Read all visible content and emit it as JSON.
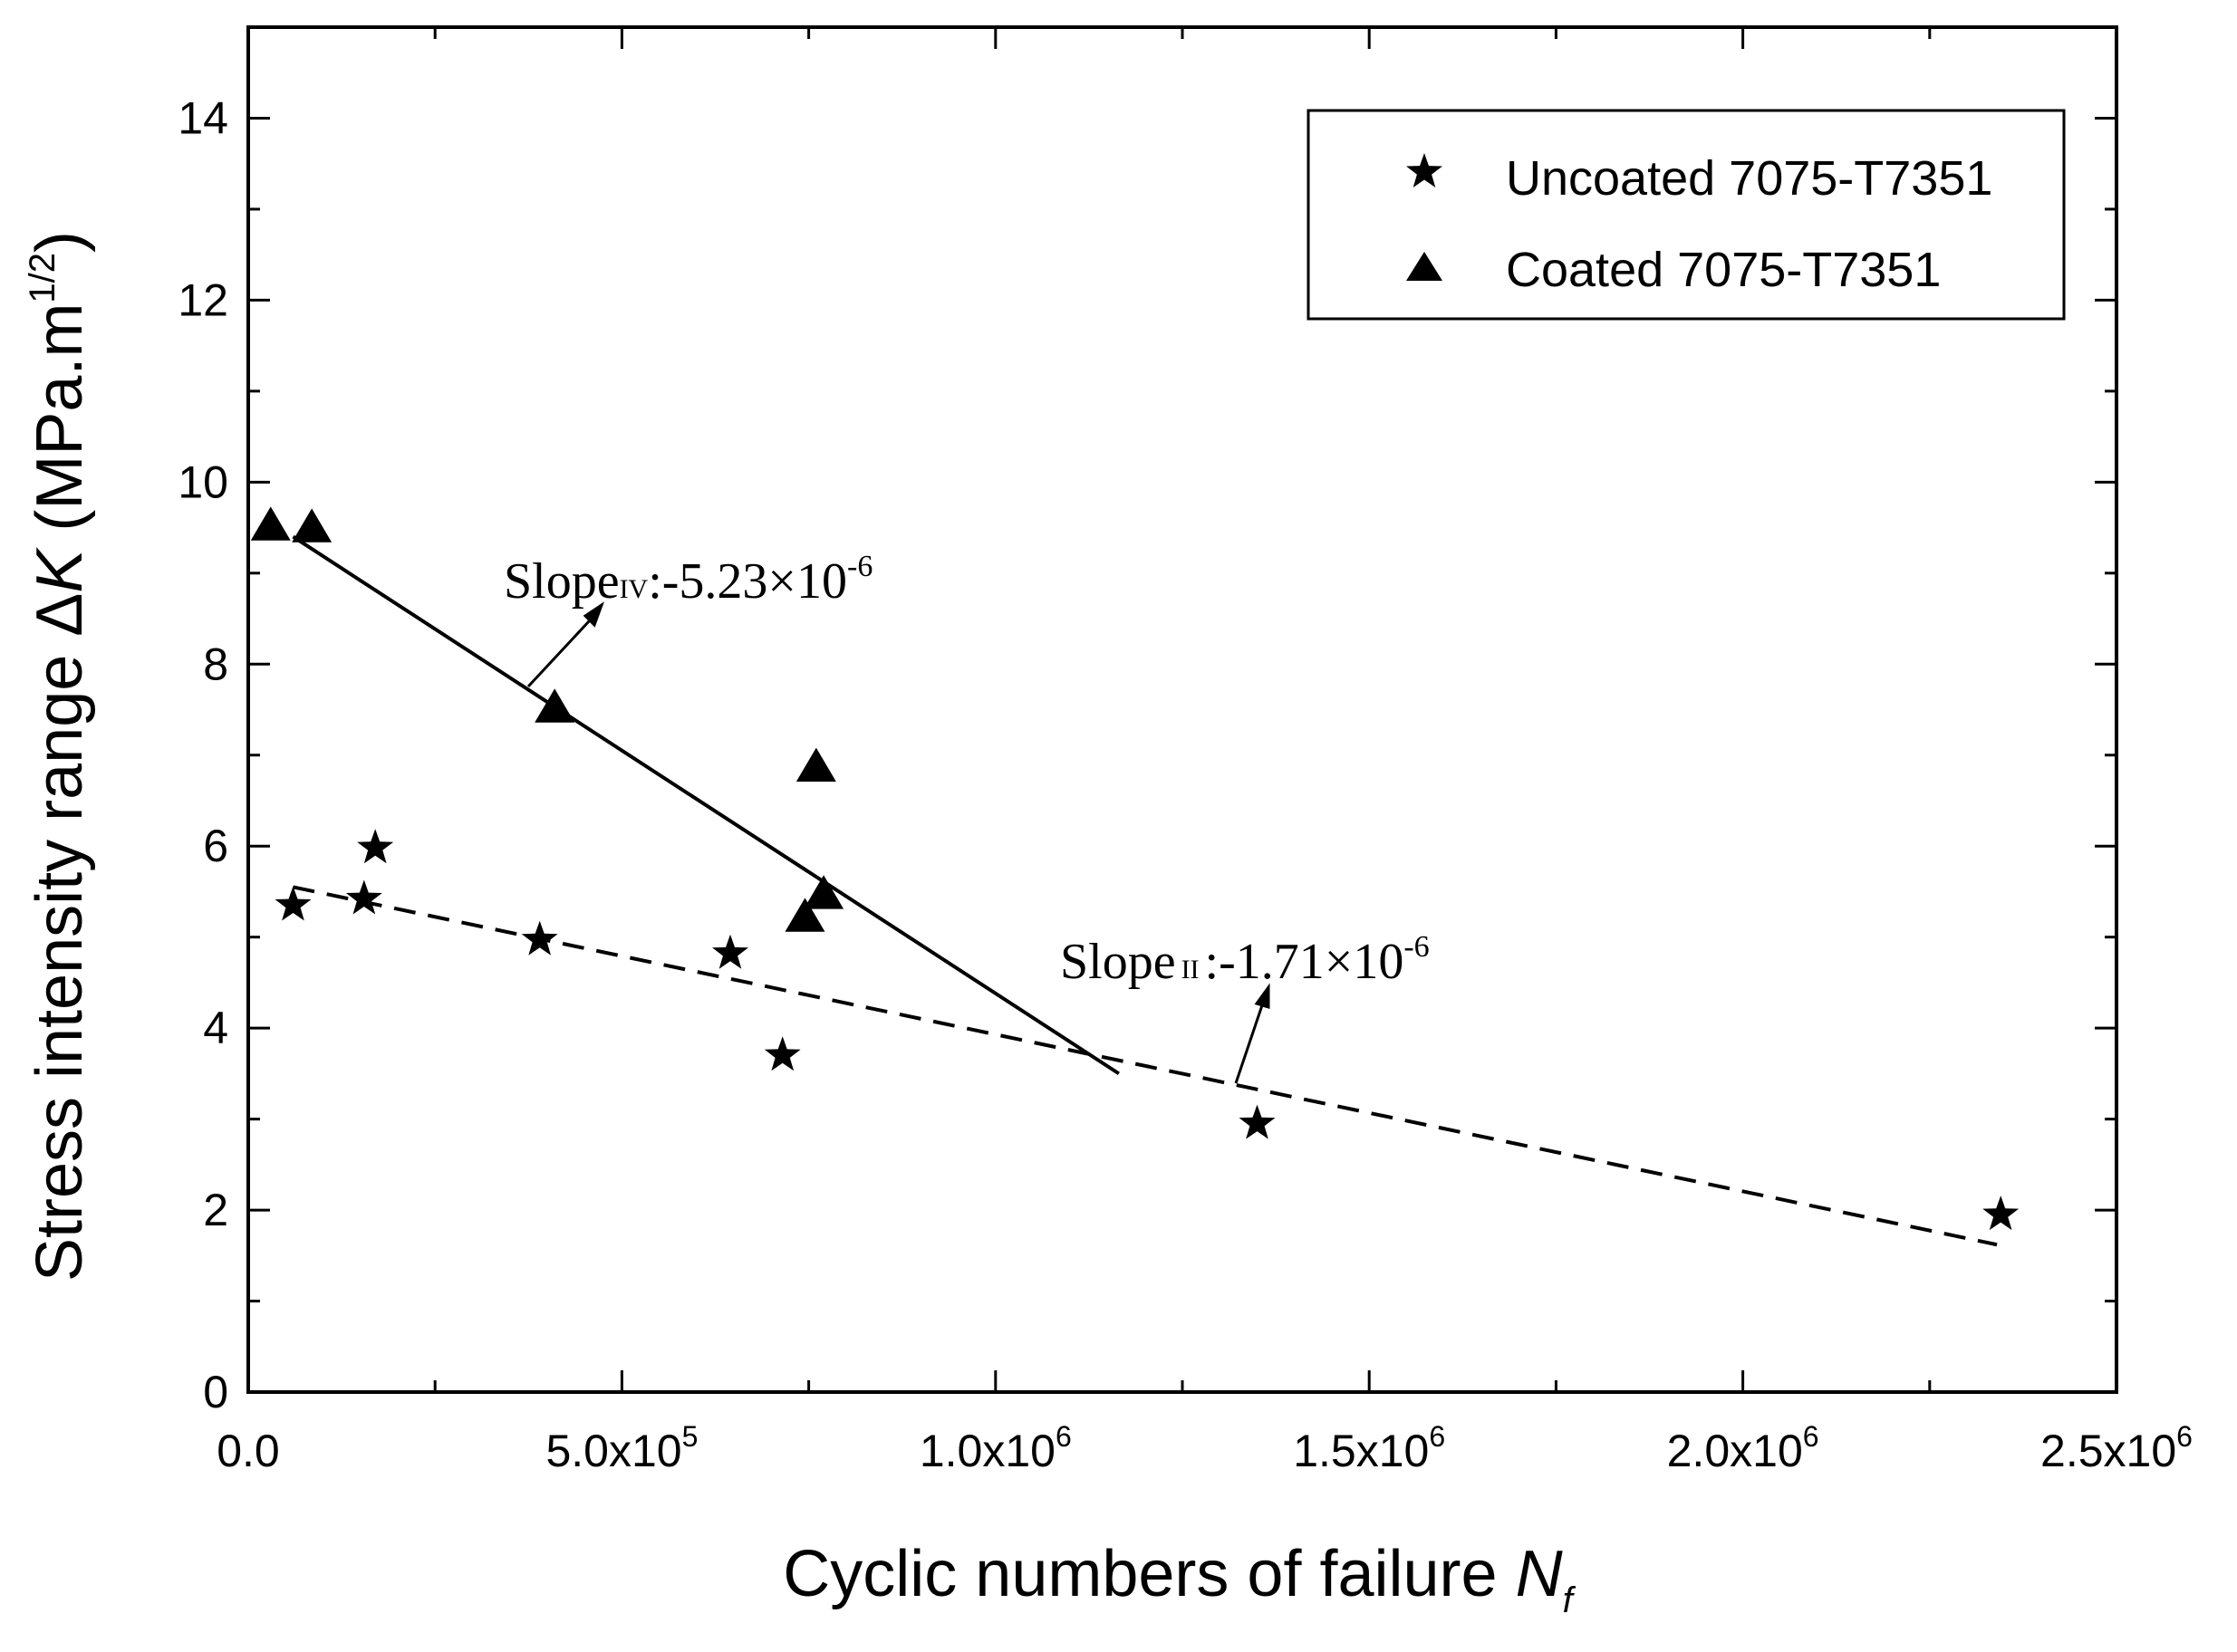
{
  "chart_data": {
    "type": "scatter",
    "xlabel": "Cyclic numbers of failure",
    "xlabel_var": "N",
    "xlabel_sub": "f",
    "ylabel": "Stress intensity range ",
    "ylabel_symbol": "Δ",
    "ylabel_var": "K",
    "ylabel_unit_open": " (MPa.m",
    "ylabel_unit_sup": "1/2",
    "ylabel_unit_close": ")",
    "xlim": [
      0,
      2500000
    ],
    "ylim": [
      0,
      15
    ],
    "x_ticks": [
      {
        "value": 0,
        "mant": "0.0",
        "exp": ""
      },
      {
        "value": 500000,
        "mant": "5.0x10",
        "exp": "5"
      },
      {
        "value": 1000000,
        "mant": "1.0x10",
        "exp": "6"
      },
      {
        "value": 1500000,
        "mant": "1.5x10",
        "exp": "6"
      },
      {
        "value": 2000000,
        "mant": "2.0x10",
        "exp": "6"
      },
      {
        "value": 2500000,
        "mant": "2.5x10",
        "exp": "6"
      }
    ],
    "y_ticks": [
      {
        "value": 0,
        "label": "0"
      },
      {
        "value": 2,
        "label": "2"
      },
      {
        "value": 4,
        "label": "4"
      },
      {
        "value": 6,
        "label": "6"
      },
      {
        "value": 8,
        "label": "8"
      },
      {
        "value": 10,
        "label": "10"
      },
      {
        "value": 12,
        "label": "12"
      },
      {
        "value": 14,
        "label": "14"
      }
    ],
    "series": [
      {
        "name": "Uncoated 7075-T7351",
        "marker": "star",
        "points": [
          {
            "x": 60000,
            "y": 5.35
          },
          {
            "x": 155000,
            "y": 5.42
          },
          {
            "x": 170000,
            "y": 5.98
          },
          {
            "x": 390000,
            "y": 4.97
          },
          {
            "x": 645000,
            "y": 4.82
          },
          {
            "x": 715000,
            "y": 3.7
          },
          {
            "x": 1350000,
            "y": 2.95
          },
          {
            "x": 2345000,
            "y": 1.95
          }
        ]
      },
      {
        "name": "Coated 7075-T7351",
        "marker": "triangle",
        "points": [
          {
            "x": 30000,
            "y": 9.5
          },
          {
            "x": 85000,
            "y": 9.48
          },
          {
            "x": 410000,
            "y": 7.5
          },
          {
            "x": 760000,
            "y": 6.85
          },
          {
            "x": 745000,
            "y": 5.2
          },
          {
            "x": 770000,
            "y": 5.45
          }
        ]
      }
    ],
    "fit_lines": [
      {
        "name": "coated-fit",
        "style": "solid",
        "x1": 60000,
        "y1": 9.4,
        "x2": 1165000,
        "y2": 3.5
      },
      {
        "name": "uncoated-fit",
        "style": "dashed",
        "x1": 60000,
        "y1": 5.55,
        "x2": 2340000,
        "y2": 1.62
      }
    ],
    "annotations": [
      {
        "name": "slope-iv",
        "prefix": "Slope",
        "sub": "IV",
        "value": ":-5.23×10",
        "exp": "-6"
      },
      {
        "name": "slope-ii",
        "prefix": "Slope",
        "sub": "II",
        "value": ":-1.71×10",
        "exp": "-6"
      }
    ],
    "legend": {
      "position": "top-right",
      "entries": [
        "Uncoated 7075-T7351",
        "Coated 7075-T7351"
      ]
    }
  }
}
